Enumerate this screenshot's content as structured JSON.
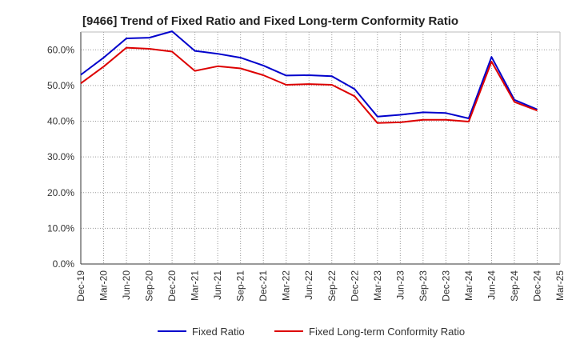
{
  "chart_data": {
    "type": "line",
    "title": "[9466]  Trend of Fixed Ratio and Fixed Long-term Conformity Ratio",
    "xlabel": "",
    "ylabel": "",
    "x": [
      "Dec-19",
      "Mar-20",
      "Jun-20",
      "Sep-20",
      "Dec-20",
      "Mar-21",
      "Jun-21",
      "Sep-21",
      "Dec-21",
      "Mar-22",
      "Jun-22",
      "Sep-22",
      "Dec-22",
      "Mar-23",
      "Jun-23",
      "Sep-23",
      "Dec-23",
      "Mar-24",
      "Jun-24",
      "Sep-24",
      "Dec-24"
    ],
    "tick_labels": [
      "Dec-19",
      "Mar-20",
      "Jun-20",
      "Sep-20",
      "Dec-20",
      "Mar-21",
      "Jun-21",
      "Sep-21",
      "Dec-21",
      "Mar-22",
      "Jun-22",
      "Sep-22",
      "Dec-22",
      "Mar-23",
      "Jun-23",
      "Sep-23",
      "Dec-23",
      "Mar-24",
      "Jun-24",
      "Sep-24",
      "Dec-24",
      "Mar-25"
    ],
    "y_ticks": [
      "0.0%",
      "10.0%",
      "20.0%",
      "30.0%",
      "40.0%",
      "50.0%",
      "60.0%"
    ],
    "ylim": [
      0,
      65
    ],
    "grid": true,
    "legend_position": "bottom",
    "series": [
      {
        "name": "Fixed Ratio",
        "color": "#0000cc",
        "values": [
          53.0,
          57.8,
          63.2,
          63.4,
          65.2,
          59.7,
          58.9,
          57.8,
          55.6,
          52.8,
          52.9,
          52.6,
          49.0,
          41.3,
          41.8,
          42.5,
          42.3,
          40.8,
          58.0,
          46.0,
          43.3
        ]
      },
      {
        "name": "Fixed Long-term Conformity Ratio",
        "color": "#dd0000",
        "values": [
          50.6,
          55.3,
          60.6,
          60.3,
          59.5,
          54.1,
          55.4,
          54.8,
          52.9,
          50.2,
          50.4,
          50.2,
          47.0,
          39.5,
          39.7,
          40.4,
          40.4,
          39.9,
          56.7,
          45.4,
          43.0
        ]
      }
    ]
  }
}
